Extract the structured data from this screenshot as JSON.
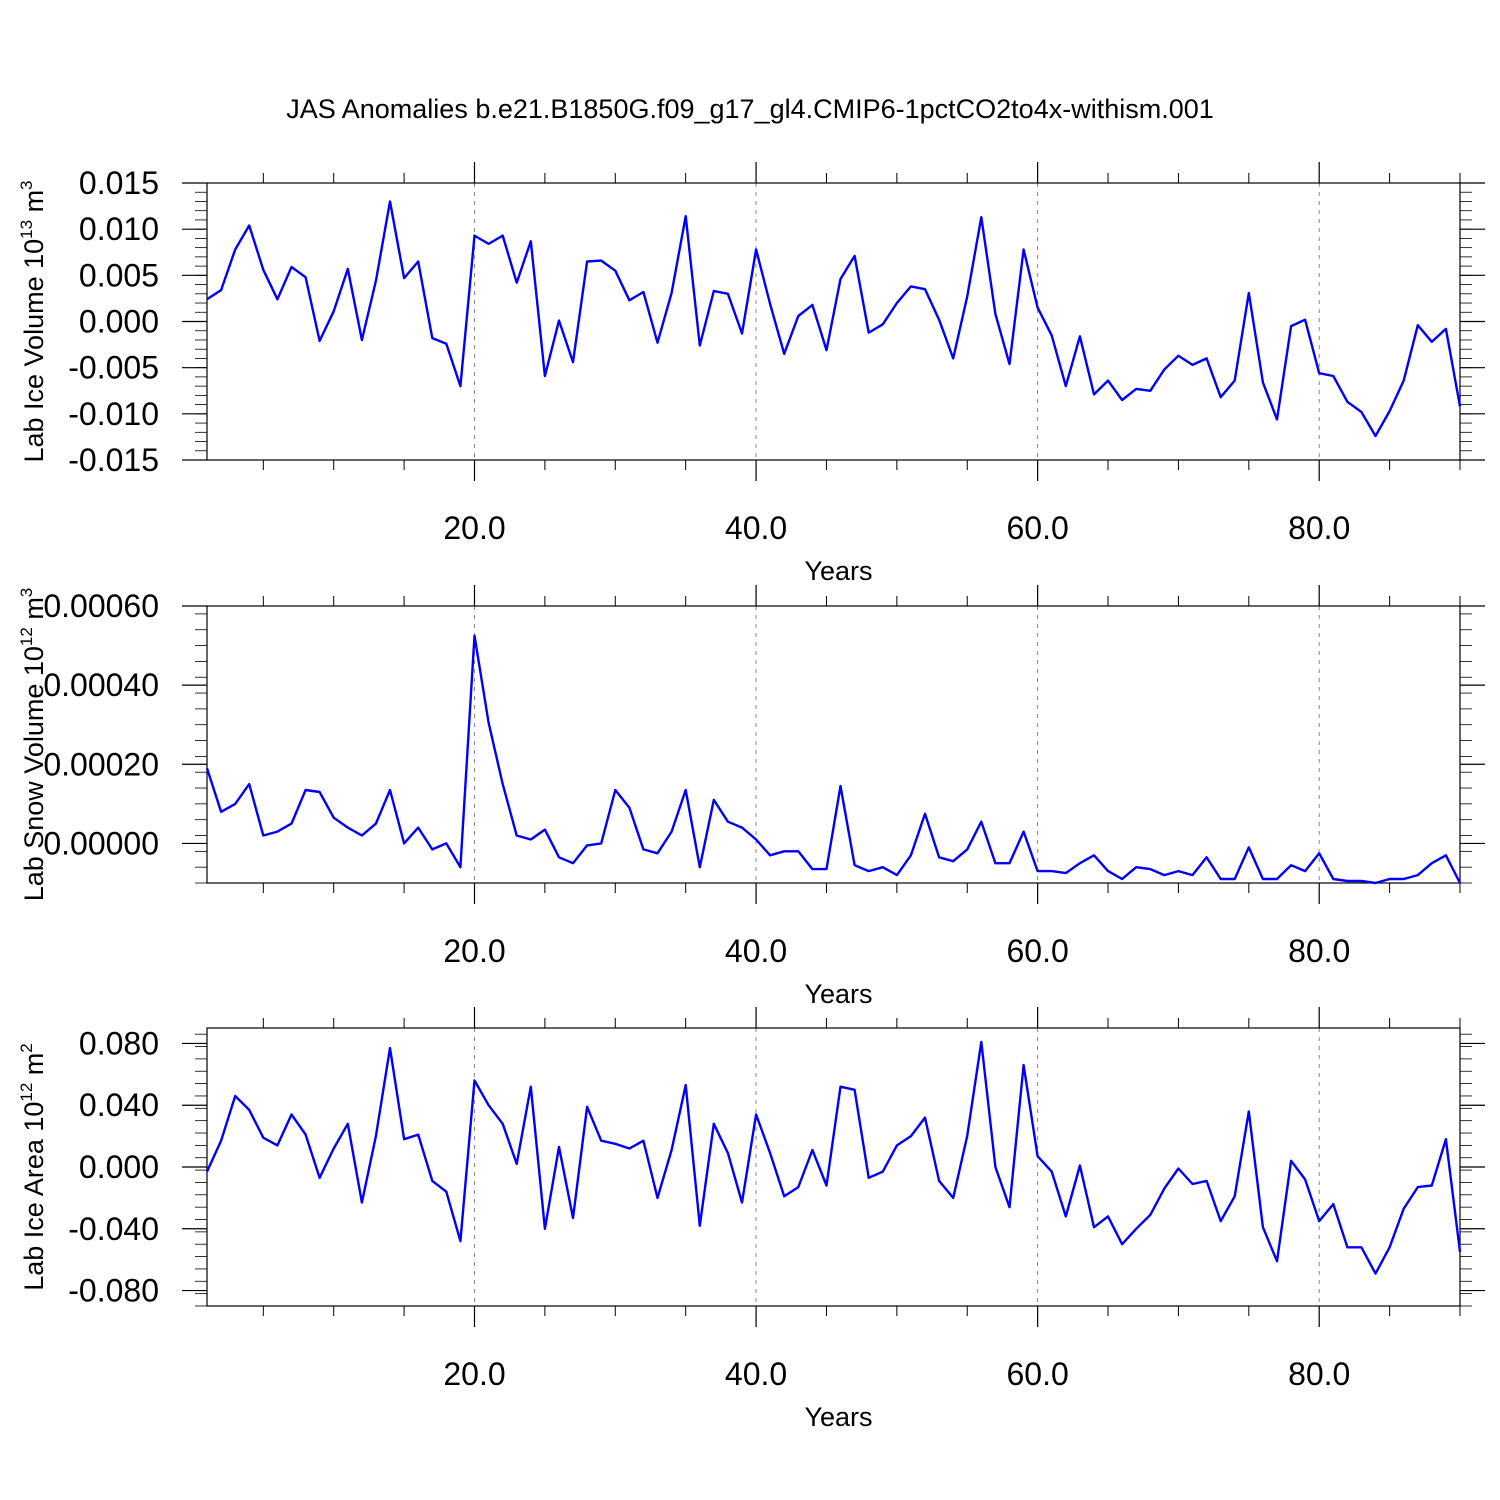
{
  "title": "JAS Anomalies b.e21.B1850G.f09_g17_gl4.CMIP6-1pctCO2to4x-withism.001",
  "colors": {
    "series": "#0000ff",
    "grid": "#888888",
    "axis": "#000000"
  },
  "chart_data": [
    {
      "type": "line",
      "xlabel": "Years",
      "ylabel": "Lab Ice Volume 10",
      "ylabel_exp": "13",
      "ylabel_unit": " m",
      "ylabel_unit_exp": "3",
      "xlim": [
        1,
        90
      ],
      "ylim": [
        -0.015,
        0.015
      ],
      "grid": "vertical dashed at 20, 40, 60, 80",
      "xticks": [
        {
          "v": 20,
          "label": "20.0"
        },
        {
          "v": 40,
          "label": "40.0"
        },
        {
          "v": 60,
          "label": "60.0"
        },
        {
          "v": 80,
          "label": "80.0"
        }
      ],
      "yticks": [
        {
          "v": 0.015,
          "label": "0.015"
        },
        {
          "v": 0.01,
          "label": "0.010"
        },
        {
          "v": 0.005,
          "label": "0.005"
        },
        {
          "v": 0,
          "label": "0.000"
        },
        {
          "v": -0.005,
          "label": "-0.005"
        },
        {
          "v": -0.01,
          "label": "-0.010"
        },
        {
          "v": -0.015,
          "label": "-0.015"
        }
      ],
      "x_start": 1,
      "values": [
        0.0024,
        0.0034,
        0.0078,
        0.0104,
        0.0056,
        0.0024,
        0.0059,
        0.0048,
        -0.0021,
        0.0011,
        0.0057,
        -0.002,
        0.0044,
        0.013,
        0.0047,
        0.0065,
        -0.0018,
        -0.0024,
        -0.007,
        0.0093,
        0.0084,
        0.0093,
        0.0042,
        0.0087,
        -0.0059,
        0.0001,
        -0.0044,
        0.0065,
        0.0066,
        0.0055,
        0.0023,
        0.0032,
        -0.0023,
        0.0031,
        0.0114,
        -0.0026,
        0.0033,
        0.003,
        -0.0013,
        0.0078,
        0.0019,
        -0.0035,
        0.0006,
        0.0018,
        -0.0031,
        0.0046,
        0.0071,
        -0.0012,
        -0.0003,
        0.002,
        0.0038,
        0.0035,
        0.0002,
        -0.004,
        0.0027,
        0.0113,
        0.0008,
        -0.0046,
        0.0078,
        0.0015,
        -0.0015,
        -0.007,
        -0.0016,
        -0.0079,
        -0.0064,
        -0.0085,
        -0.0073,
        -0.0075,
        -0.0052,
        -0.0037,
        -0.0047,
        -0.004,
        -0.0082,
        -0.0064,
        0.0031,
        -0.0066,
        -0.0106,
        -0.0005,
        0.0002,
        -0.0056,
        -0.0059,
        -0.0087,
        -0.0098,
        -0.0124,
        -0.0097,
        -0.0064,
        -0.0004,
        -0.0022,
        -0.0008,
        -0.0092
      ]
    },
    {
      "type": "line",
      "xlabel": "Years",
      "ylabel": "Lab Snow Volume 10",
      "ylabel_exp": "12",
      "ylabel_unit": " m",
      "ylabel_unit_exp": "3",
      "xlim": [
        1,
        90
      ],
      "ylim": [
        -0.0001,
        0.0006
      ],
      "grid": "vertical dashed at 20, 40, 60, 80",
      "xticks": [
        {
          "v": 20,
          "label": "20.0"
        },
        {
          "v": 40,
          "label": "40.0"
        },
        {
          "v": 60,
          "label": "60.0"
        },
        {
          "v": 80,
          "label": "80.0"
        }
      ],
      "yticks": [
        {
          "v": 0.0006,
          "label": "0.00060"
        },
        {
          "v": 0.0004,
          "label": "0.00040"
        },
        {
          "v": 0.0002,
          "label": "0.00020"
        },
        {
          "v": 0,
          "label": "0.00000"
        }
      ],
      "x_start": 1,
      "values": [
        0.00019,
        8e-05,
        0.0001,
        0.00015,
        2e-05,
        3e-05,
        5e-05,
        0.000135,
        0.00013,
        6.5e-05,
        4e-05,
        2e-05,
        5e-05,
        0.000135,
        0.0,
        4e-05,
        -1.5e-05,
        0.0,
        -6e-05,
        0.000525,
        0.000305,
        0.00015,
        2e-05,
        1e-05,
        3.5e-05,
        -3.5e-05,
        -5e-05,
        -5e-06,
        0.0,
        0.000135,
        9e-05,
        -1.5e-05,
        -2.5e-05,
        3e-05,
        0.000135,
        -6e-05,
        0.00011,
        5.5e-05,
        4e-05,
        1e-05,
        -3e-05,
        -2e-05,
        -2e-05,
        -6.5e-05,
        -6.5e-05,
        0.000145,
        -5.5e-05,
        -7e-05,
        -6e-05,
        -8e-05,
        -3e-05,
        7.5e-05,
        -3.5e-05,
        -4.5e-05,
        -1.5e-05,
        5.5e-05,
        -5e-05,
        -5e-05,
        3e-05,
        -7e-05,
        -7e-05,
        -7.5e-05,
        -5e-05,
        -3e-05,
        -7e-05,
        -9e-05,
        -6e-05,
        -6.5e-05,
        -8e-05,
        -7e-05,
        -8e-05,
        -3.5e-05,
        -9e-05,
        -9e-05,
        -1e-05,
        -9e-05,
        -9e-05,
        -5.5e-05,
        -7e-05,
        -2.5e-05,
        -9e-05,
        -9.5e-05,
        -9.5e-05,
        -0.0001,
        -9e-05,
        -9e-05,
        -8e-05,
        -5e-05,
        -3e-05,
        -0.0001
      ]
    },
    {
      "type": "line",
      "xlabel": "Years",
      "ylabel": "Lab Ice Area 10",
      "ylabel_exp": "12",
      "ylabel_unit": " m",
      "ylabel_unit_exp": "2",
      "xlim": [
        1,
        90
      ],
      "ylim": [
        -0.09,
        0.09
      ],
      "grid": "vertical dashed at 20, 40, 60, 80",
      "xticks": [
        {
          "v": 20,
          "label": "20.0"
        },
        {
          "v": 40,
          "label": "40.0"
        },
        {
          "v": 60,
          "label": "60.0"
        },
        {
          "v": 80,
          "label": "80.0"
        }
      ],
      "yticks": [
        {
          "v": 0.08,
          "label": "0.080"
        },
        {
          "v": 0.04,
          "label": "0.040"
        },
        {
          "v": 0,
          "label": "0.000"
        },
        {
          "v": -0.04,
          "label": "-0.040"
        },
        {
          "v": -0.08,
          "label": "-0.080"
        }
      ],
      "x_start": 1,
      "values": [
        -0.003,
        0.017,
        0.046,
        0.037,
        0.019,
        0.014,
        0.034,
        0.021,
        -0.007,
        0.012,
        0.028,
        -0.023,
        0.02,
        0.077,
        0.018,
        0.021,
        -0.009,
        -0.016,
        -0.048,
        0.056,
        0.04,
        0.028,
        0.002,
        0.052,
        -0.04,
        0.013,
        -0.033,
        0.039,
        0.017,
        0.015,
        0.012,
        0.017,
        -0.02,
        0.011,
        0.053,
        -0.038,
        0.028,
        0.009,
        -0.023,
        0.034,
        0.009,
        -0.019,
        -0.013,
        0.011,
        -0.012,
        0.052,
        0.05,
        -0.007,
        -0.003,
        0.014,
        0.02,
        0.032,
        -0.009,
        -0.02,
        0.02,
        0.081,
        0.0,
        -0.026,
        0.066,
        0.007,
        -0.003,
        -0.032,
        0.001,
        -0.039,
        -0.032,
        -0.05,
        -0.04,
        -0.031,
        -0.014,
        -0.001,
        -0.011,
        -0.009,
        -0.035,
        -0.019,
        0.036,
        -0.039,
        -0.061,
        0.004,
        -0.008,
        -0.035,
        -0.024,
        -0.052,
        -0.052,
        -0.069,
        -0.052,
        -0.027,
        -0.013,
        -0.012,
        0.018,
        -0.055
      ]
    }
  ]
}
